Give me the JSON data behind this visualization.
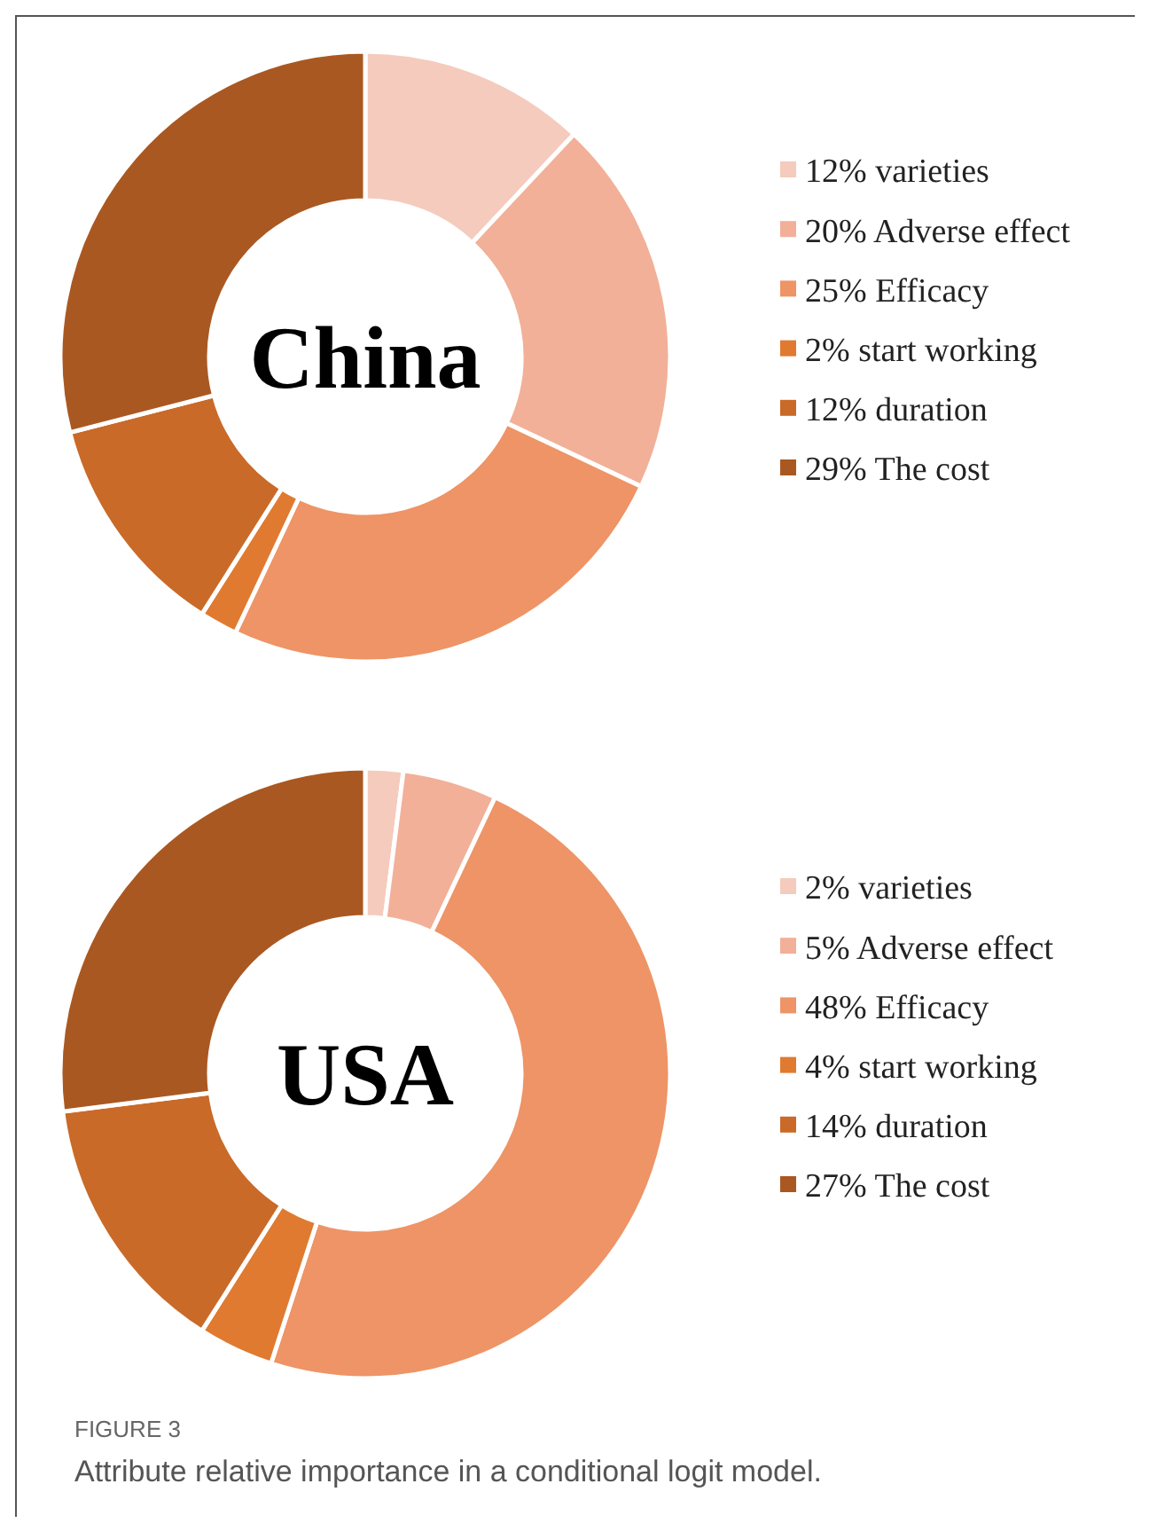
{
  "chart_data": [
    {
      "type": "donut",
      "title": "China",
      "categories": [
        "varieties",
        "Adverse effect",
        "Efficacy",
        "start working",
        "duration",
        "The cost"
      ],
      "values": [
        12,
        20,
        25,
        2,
        12,
        29
      ],
      "value_labels": [
        "12%",
        "20%",
        "25%",
        "2%",
        "12%",
        "29%"
      ],
      "colors": [
        "#f5cbbd",
        "#f2b098",
        "#ee9466",
        "#e07a30",
        "#c96a28",
        "#aa5821"
      ],
      "legend": "right"
    },
    {
      "type": "donut",
      "title": "USA",
      "categories": [
        "varieties",
        "Adverse effect",
        "Efficacy",
        "start working",
        "duration",
        "The cost"
      ],
      "values": [
        2,
        5,
        48,
        4,
        14,
        27
      ],
      "value_labels": [
        "2%",
        "5%",
        "48%",
        "4%",
        "14%",
        "27%"
      ],
      "colors": [
        "#f5cbbd",
        "#f2b098",
        "#ee9466",
        "#e07a30",
        "#c96a28",
        "#aa5821"
      ],
      "legend": "right",
      "annotations": [
        "FIGURE 3",
        "Attribute relative importance in a conditional logit model."
      ]
    }
  ]
}
